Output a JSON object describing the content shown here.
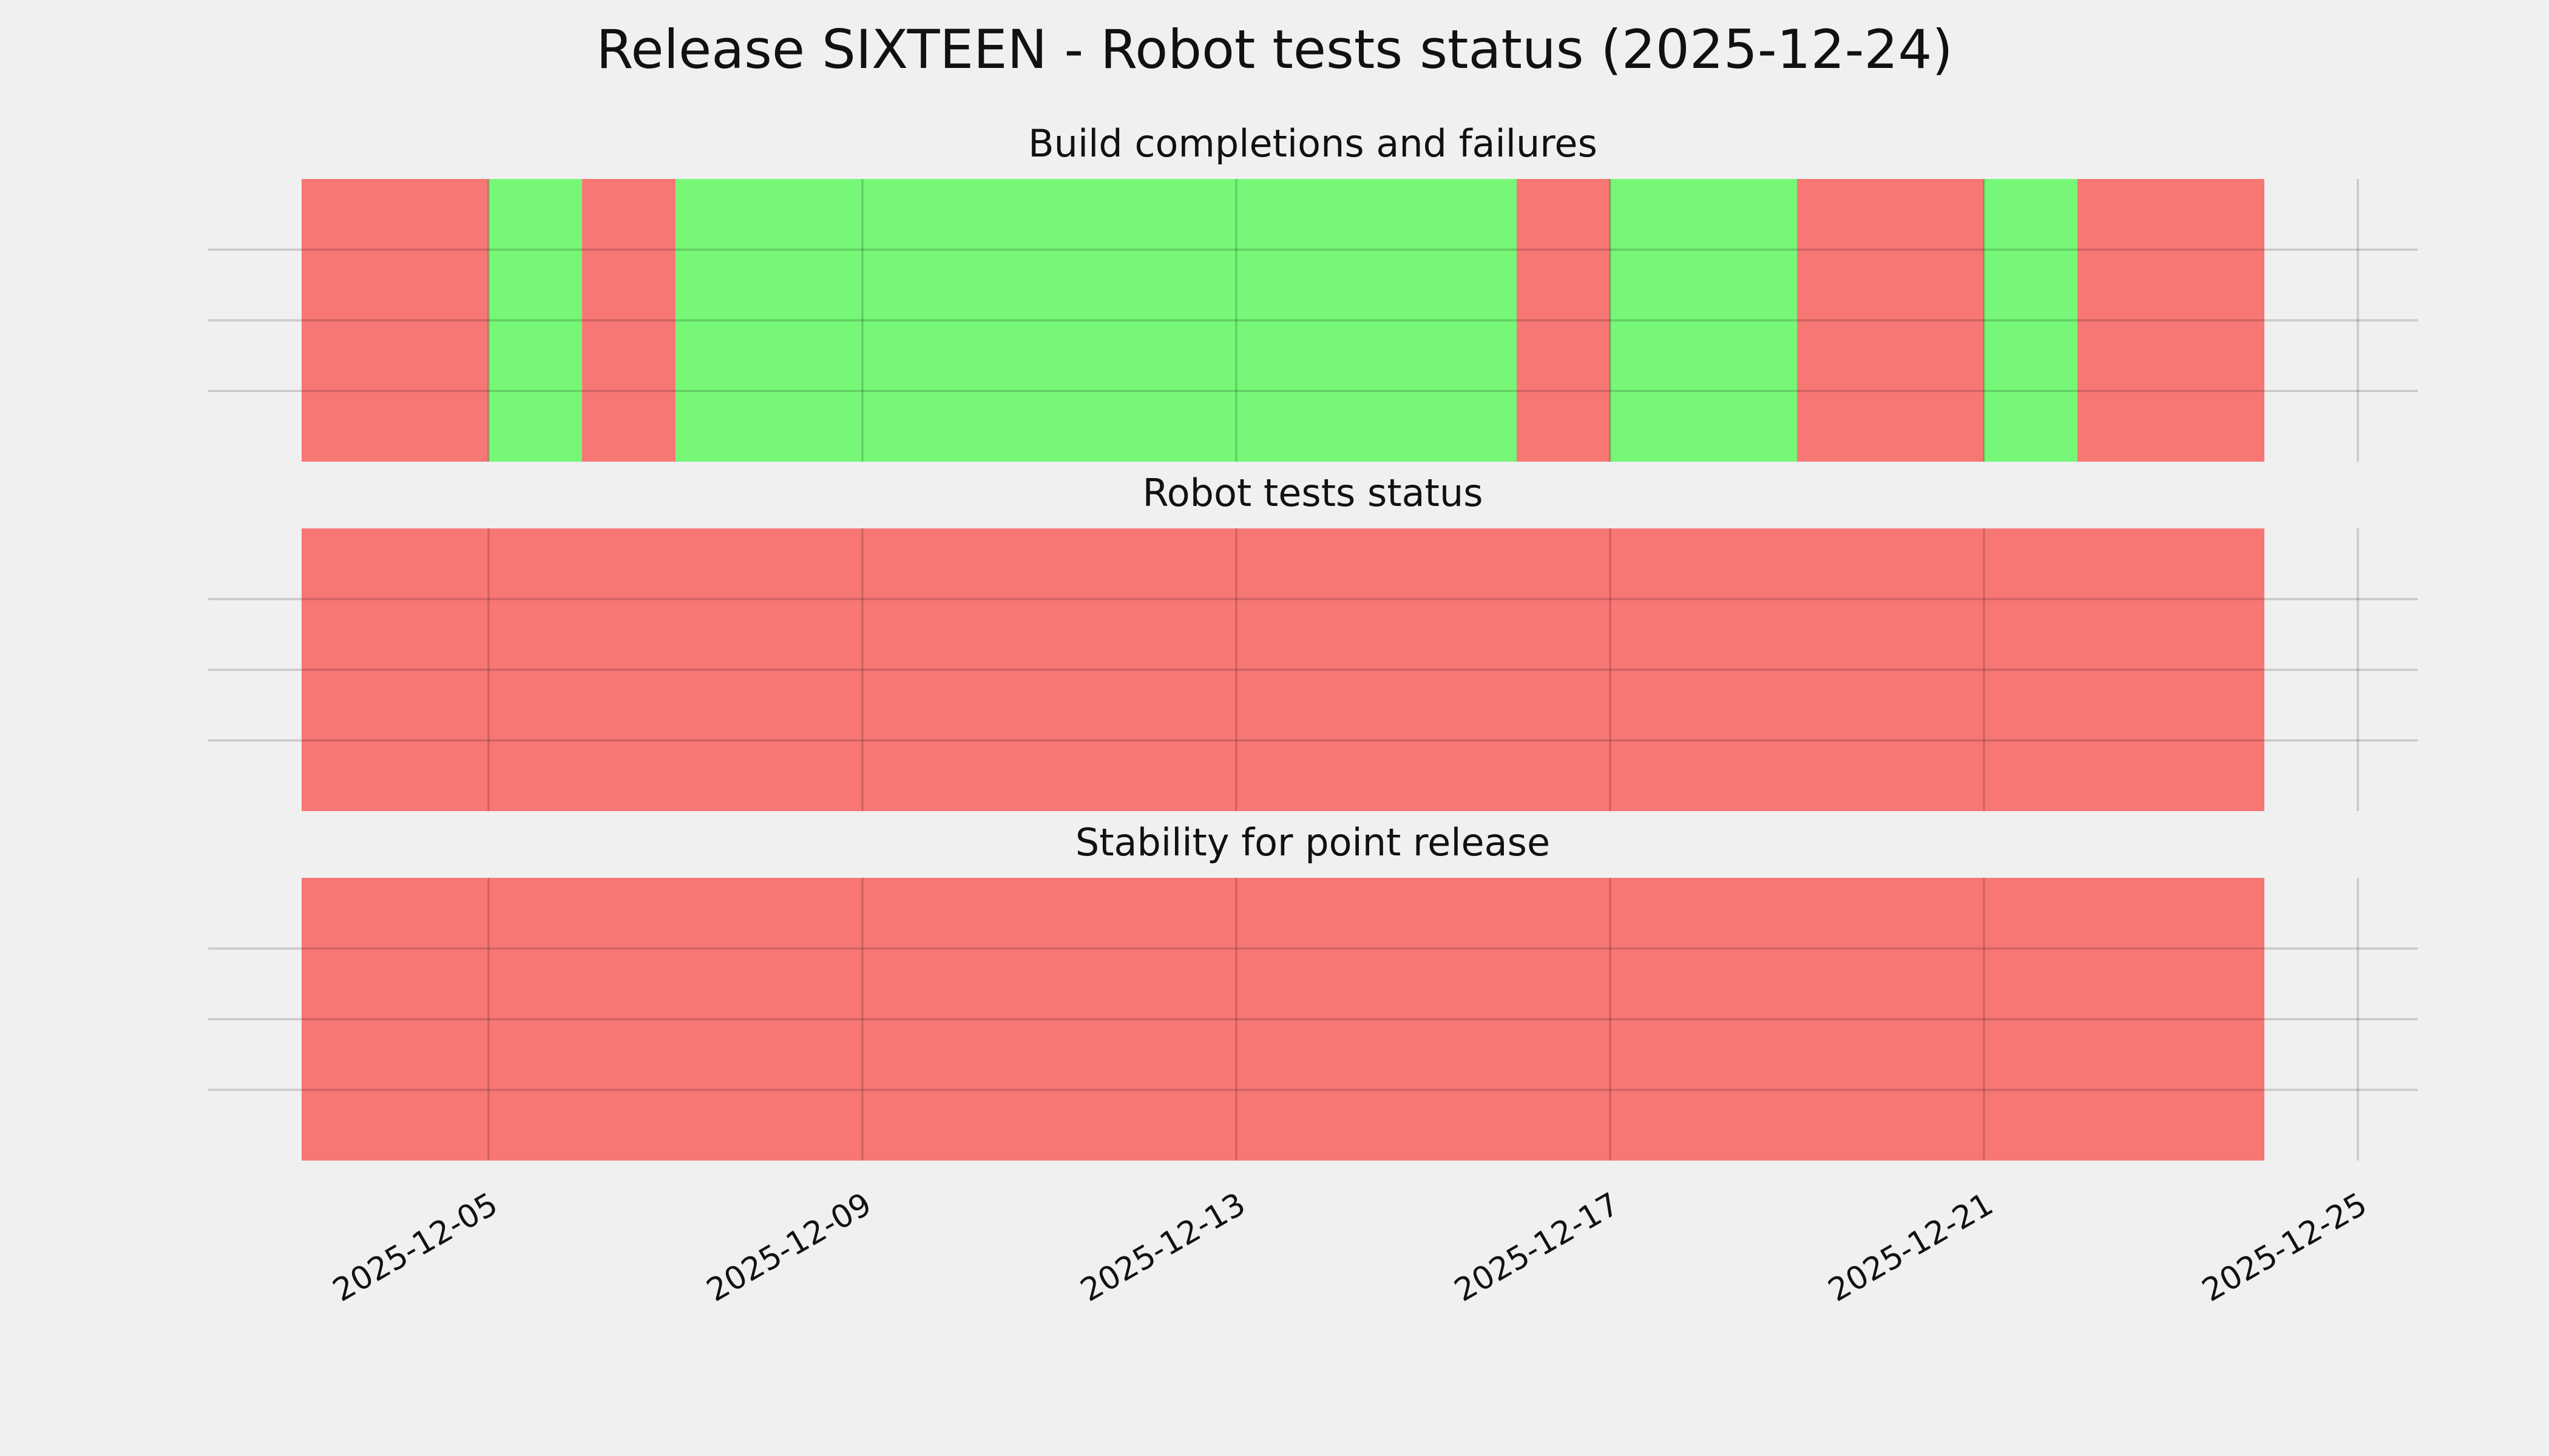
{
  "title": "Release SIXTEEN - Robot tests status (2025-12-24)",
  "chart_data": [
    {
      "type": "timeline",
      "title": "Build completions and failures",
      "xlim": [
        "2025-12-02",
        "2025-12-26"
      ],
      "xticks": [
        "2025-12-05",
        "2025-12-09",
        "2025-12-13",
        "2025-12-17",
        "2025-12-21",
        "2025-12-25"
      ],
      "ylim": [
        0,
        1
      ],
      "yticks": [
        0.25,
        0.5,
        0.75
      ],
      "grid": true,
      "spans": [
        {
          "start": "2025-12-03",
          "end": "2025-12-05",
          "color": "#f77775"
        },
        {
          "start": "2025-12-05",
          "end": "2025-12-06",
          "color": "#77f777"
        },
        {
          "start": "2025-12-06",
          "end": "2025-12-07",
          "color": "#f77775"
        },
        {
          "start": "2025-12-07",
          "end": "2025-12-16",
          "color": "#77f777"
        },
        {
          "start": "2025-12-16",
          "end": "2025-12-17",
          "color": "#f77775"
        },
        {
          "start": "2025-12-17",
          "end": "2025-12-19",
          "color": "#77f777"
        },
        {
          "start": "2025-12-19",
          "end": "2025-12-21",
          "color": "#f77775"
        },
        {
          "start": "2025-12-21",
          "end": "2025-12-22",
          "color": "#77f777"
        },
        {
          "start": "2025-12-22",
          "end": "2025-12-24",
          "color": "#f77775"
        }
      ]
    },
    {
      "type": "timeline",
      "title": "Robot tests status",
      "xlim": [
        "2025-12-02",
        "2025-12-26"
      ],
      "xticks": [
        "2025-12-05",
        "2025-12-09",
        "2025-12-13",
        "2025-12-17",
        "2025-12-21",
        "2025-12-25"
      ],
      "ylim": [
        0,
        1
      ],
      "yticks": [
        0.25,
        0.5,
        0.75
      ],
      "grid": true,
      "spans": [
        {
          "start": "2025-12-03",
          "end": "2025-12-24",
          "color": "#f77775"
        }
      ]
    },
    {
      "type": "timeline",
      "title": "Stability for point release",
      "xlim": [
        "2025-12-02",
        "2025-12-26"
      ],
      "xticks": [
        "2025-12-05",
        "2025-12-09",
        "2025-12-13",
        "2025-12-17",
        "2025-12-21",
        "2025-12-25"
      ],
      "ylim": [
        0,
        1
      ],
      "yticks": [
        0.25,
        0.5,
        0.75
      ],
      "grid": true,
      "show_xtick_labels": true,
      "spans": [
        {
          "start": "2025-12-03",
          "end": "2025-12-24",
          "color": "#f77775"
        }
      ]
    }
  ]
}
